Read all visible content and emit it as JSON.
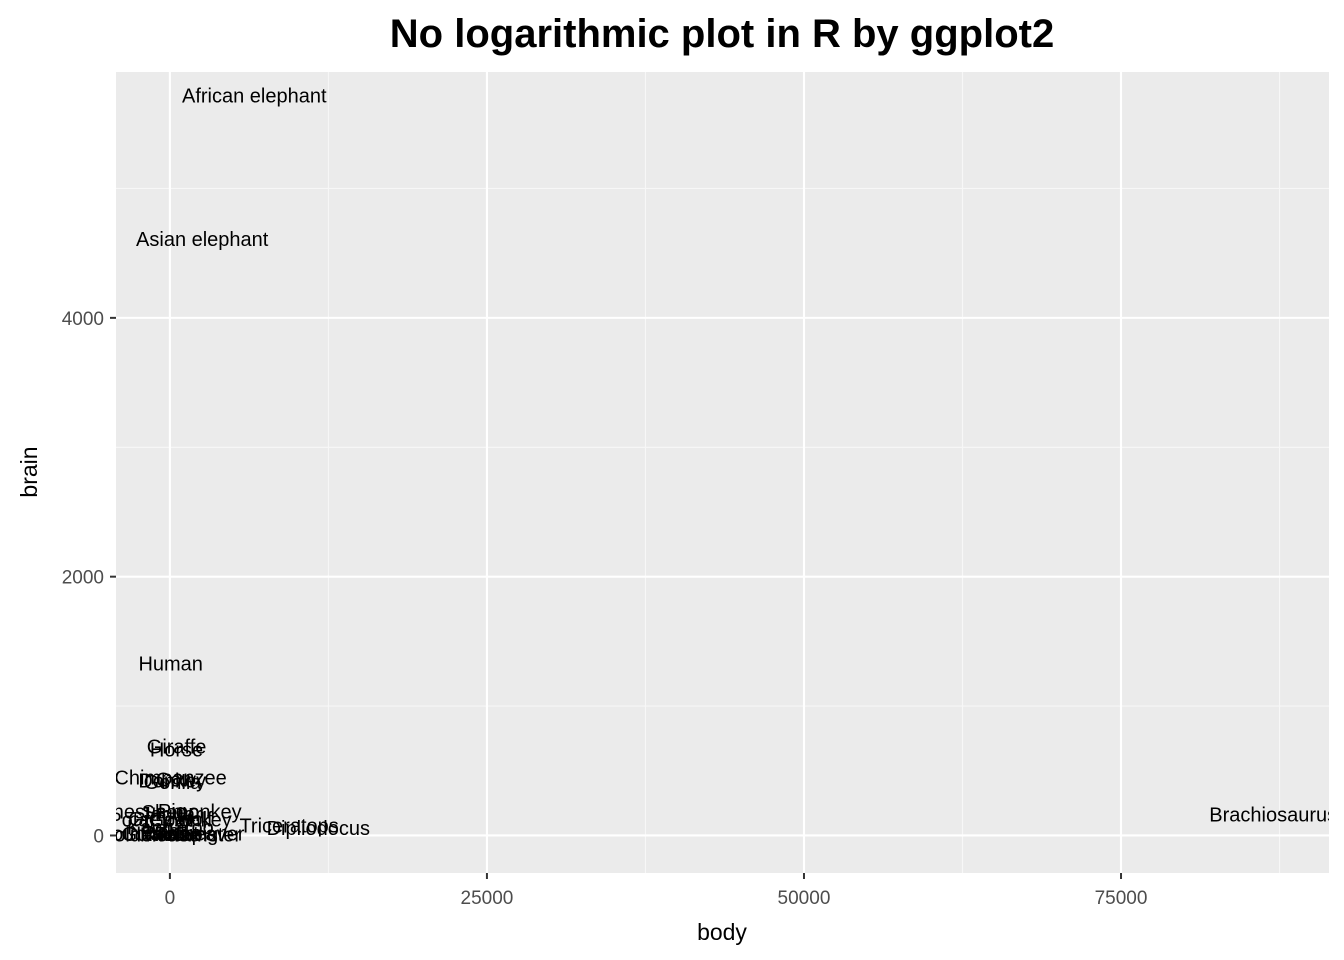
{
  "chart_data": {
    "type": "scatter",
    "title": "No logarithmic plot in R by ggplot2",
    "xlabel": "body",
    "ylabel": "brain",
    "xlim": [
      -4250,
      91400
    ],
    "ylim": [
      -290,
      5900
    ],
    "x_ticks": [
      0,
      25000,
      50000,
      75000
    ],
    "x_tick_labels": [
      "0",
      "25000",
      "50000",
      "75000"
    ],
    "y_ticks": [
      0,
      2000,
      4000
    ],
    "y_tick_labels": [
      "0",
      "2000",
      "4000"
    ],
    "grid": true,
    "colors": {
      "panel_background": "#ebebeb",
      "grid_major": "#ffffff",
      "grid_minor": "#f7f7f7",
      "tick_label": "#4d4d4d",
      "text": "#000000"
    },
    "points": [
      {
        "label": "Mountain beaver",
        "x": 1.35,
        "y": 8.1
      },
      {
        "label": "Cow",
        "x": 465,
        "y": 423
      },
      {
        "label": "Grey wolf",
        "x": 36.33,
        "y": 119.5
      },
      {
        "label": "Goat",
        "x": 27.66,
        "y": 115
      },
      {
        "label": "Guinea pig",
        "x": 1.04,
        "y": 5.5
      },
      {
        "label": "Dipliodocus",
        "x": 11700,
        "y": 50
      },
      {
        "label": "Asian elephant",
        "x": 2547,
        "y": 4603
      },
      {
        "label": "Donkey",
        "x": 187.1,
        "y": 419
      },
      {
        "label": "Horse",
        "x": 521,
        "y": 655
      },
      {
        "label": "Potar monkey",
        "x": 10,
        "y": 115
      },
      {
        "label": "Cat",
        "x": 3.3,
        "y": 25.6
      },
      {
        "label": "Giraffe",
        "x": 529,
        "y": 680
      },
      {
        "label": "Gorilla",
        "x": 207,
        "y": 406
      },
      {
        "label": "Human",
        "x": 62,
        "y": 1320
      },
      {
        "label": "African elephant",
        "x": 6654,
        "y": 5712
      },
      {
        "label": "Triceratops",
        "x": 9400,
        "y": 70
      },
      {
        "label": "Rhesus monkey",
        "x": 6.8,
        "y": 179
      },
      {
        "label": "Kangaroo",
        "x": 35,
        "y": 56
      },
      {
        "label": "Golden hamster",
        "x": 0.12,
        "y": 1
      },
      {
        "label": "Mouse",
        "x": 0.023,
        "y": 0.4
      },
      {
        "label": "Rabbit",
        "x": 2.5,
        "y": 12.1
      },
      {
        "label": "Sheep",
        "x": 55.5,
        "y": 175
      },
      {
        "label": "Jaguar",
        "x": 100,
        "y": 157
      },
      {
        "label": "Chimpanzee",
        "x": 52.16,
        "y": 440
      },
      {
        "label": "Rat",
        "x": 0.28,
        "y": 1.9
      },
      {
        "label": "Brachiosaurus",
        "x": 87000,
        "y": 154.5
      },
      {
        "label": "Mole",
        "x": 0.122,
        "y": 3
      },
      {
        "label": "Pig",
        "x": 192,
        "y": 180
      }
    ]
  }
}
